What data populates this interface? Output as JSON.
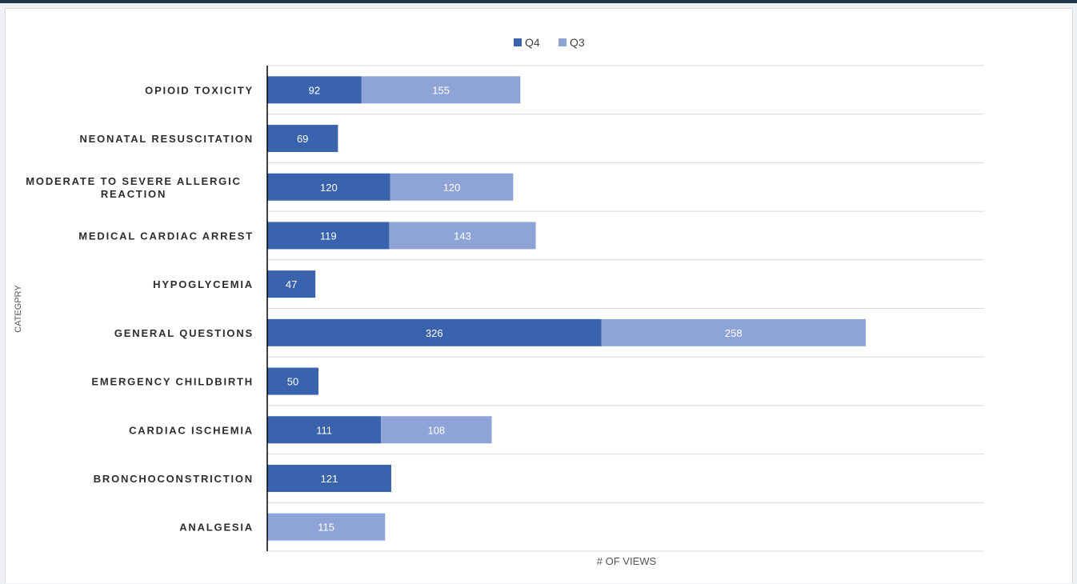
{
  "chart_data": {
    "type": "bar",
    "orientation": "horizontal",
    "stacked": true,
    "categories": [
      "OPIOID TOXICITY",
      "NEONATAL RESUSCITATION",
      "MODERATE TO SEVERE ALLERGIC REACTION",
      "MEDICAL CARDIAC ARREST",
      "HYPOGLYCEMIA",
      "GENERAL QUESTIONS",
      "EMERGENCY CHILDBIRTH",
      "CARDIAC ISCHEMIA",
      "BRONCHOCONSTRICTION",
      "ANALGESIA"
    ],
    "category_lines": [
      [
        "OPIOID TOXICITY"
      ],
      [
        "NEONATAL RESUSCITATION"
      ],
      [
        "MODERATE TO SEVERE ALLERGIC",
        "REACTION"
      ],
      [
        "MEDICAL CARDIAC ARREST"
      ],
      [
        "HYPOGLYCEMIA"
      ],
      [
        "GENERAL QUESTIONS"
      ],
      [
        "EMERGENCY CHILDBIRTH"
      ],
      [
        "CARDIAC ISCHEMIA"
      ],
      [
        "BRONCHOCONSTRICTION"
      ],
      [
        "ANALGESIA"
      ]
    ],
    "series": [
      {
        "name": "Q4",
        "color": "#3a63ad",
        "values": [
          92,
          69,
          120,
          119,
          47,
          326,
          50,
          111,
          121,
          null
        ]
      },
      {
        "name": "Q3",
        "color": "#8ea3d6",
        "values": [
          155,
          null,
          120,
          143,
          null,
          258,
          null,
          108,
          null,
          115
        ]
      }
    ],
    "xlabel": "# OF VIEWS",
    "ylabel": "CATEGPRY",
    "xlim": [
      0,
      700
    ],
    "grid": true,
    "legend_position": "top-center"
  }
}
